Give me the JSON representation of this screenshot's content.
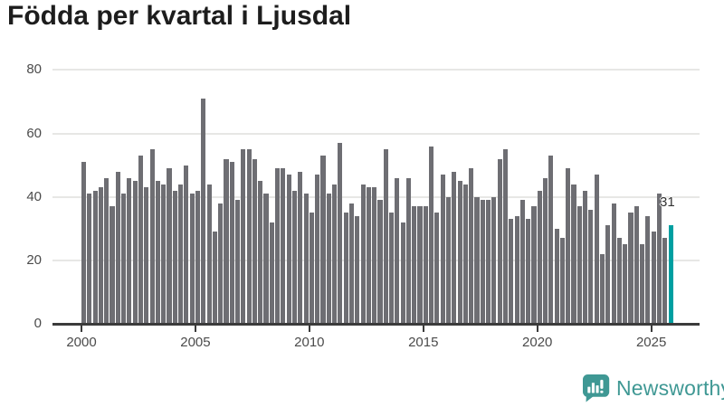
{
  "chart_data": {
    "type": "bar",
    "title": "Födda per kvartal i Ljusdal",
    "x_frequency": "quarterly",
    "x_start": "2000Q1",
    "x_end": "2025Q4",
    "values": [
      51,
      41,
      42,
      43,
      46,
      37,
      48,
      41,
      46,
      45,
      53,
      43,
      55,
      45,
      44,
      49,
      42,
      44,
      50,
      41,
      42,
      71,
      44,
      29,
      38,
      52,
      51,
      39,
      55,
      55,
      52,
      45,
      41,
      32,
      49,
      49,
      47,
      42,
      48,
      41,
      35,
      47,
      53,
      41,
      44,
      57,
      35,
      38,
      34,
      44,
      43,
      43,
      39,
      55,
      35,
      46,
      32,
      46,
      37,
      37,
      37,
      56,
      35,
      47,
      40,
      48,
      45,
      44,
      49,
      40,
      39,
      39,
      40,
      52,
      55,
      33,
      34,
      39,
      33,
      37,
      42,
      46,
      53,
      30,
      27,
      49,
      44,
      37,
      42,
      36,
      47,
      22,
      31,
      38,
      27,
      25,
      35,
      37,
      25,
      34,
      29,
      41,
      27,
      31
    ],
    "x_tick_labels": [
      "2000",
      "2005",
      "2010",
      "2015",
      "2020",
      "2025"
    ],
    "x_tick_start_year": 2000,
    "y_tick_labels": [
      "0",
      "20",
      "40",
      "60",
      "80"
    ],
    "ylim": [
      0,
      80
    ],
    "grid": "horizontal",
    "legend": "none",
    "bar_color": "#6e6e73",
    "highlight": {
      "index": 103,
      "quarter": "2025Q4",
      "value": 31,
      "label": "31",
      "color": "#009fa1"
    }
  },
  "footer": {
    "brand": "Newsworthy",
    "brand_color": "#3f9894"
  }
}
